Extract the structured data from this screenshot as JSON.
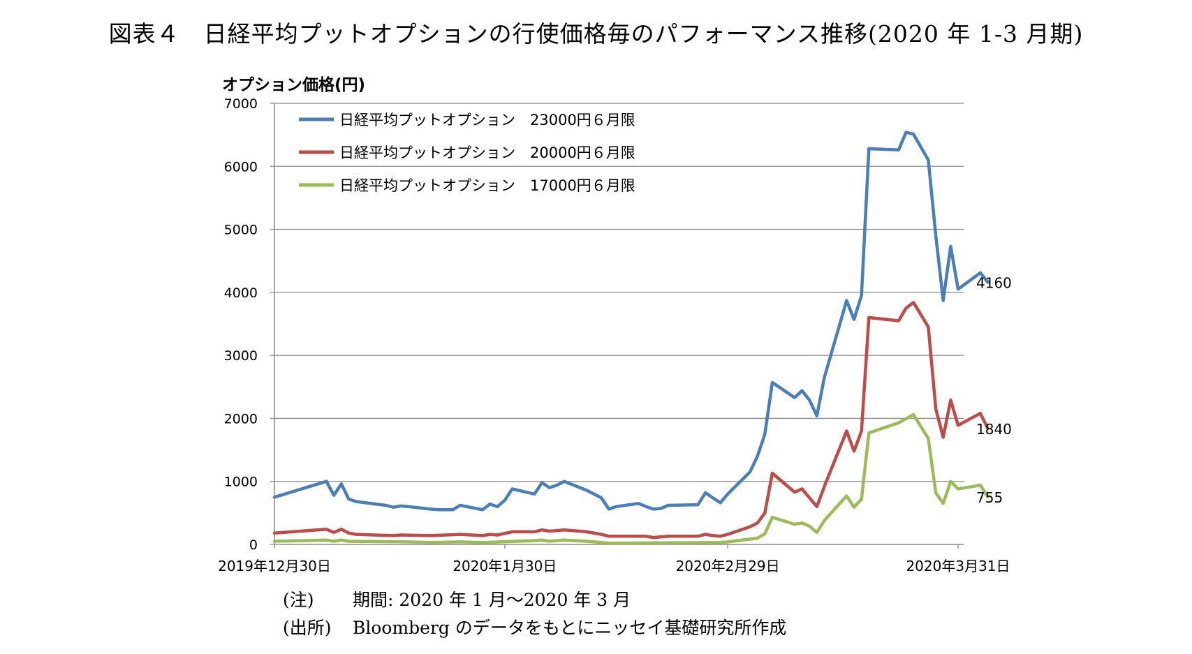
{
  "title": "図表４　日経平均プットオプションの行使価格毎のパフォーマンス推移(2020 年 1-3 月期)",
  "notes": [
    {
      "tag": "(注)",
      "text": "期間: 2020 年 1 月～2020 年 3 月"
    },
    {
      "tag": "(出所)",
      "text": "Bloomberg のデータをもとにニッセイ基礎研究所作成"
    }
  ],
  "chart_data": {
    "type": "line",
    "title": "",
    "xlabel": "",
    "ylabel": "オプション価格(円)",
    "ylim": [
      0,
      7000
    ],
    "yticks": [
      0,
      1000,
      2000,
      3000,
      4000,
      5000,
      6000,
      7000
    ],
    "xlim": [
      "2019-12-30",
      "2020-03-31"
    ],
    "xticks": [
      {
        "date": "2019-12-30",
        "label": "2019年12月30日"
      },
      {
        "date": "2020-01-30",
        "label": "2020年1月30日"
      },
      {
        "date": "2020-02-29",
        "label": "2020年2月29日"
      },
      {
        "date": "2020-03-31",
        "label": "2020年3月31日"
      }
    ],
    "grid": true,
    "legend_position": "top-left",
    "series": [
      {
        "name": "日経平均プットオプション　23000円６月限",
        "color": "#4a7ebb",
        "end_label": "4160",
        "points": [
          [
            "2019-12-30",
            750
          ],
          [
            "2020-01-06",
            1000
          ],
          [
            "2020-01-07",
            780
          ],
          [
            "2020-01-08",
            960
          ],
          [
            "2020-01-09",
            720
          ],
          [
            "2020-01-10",
            680
          ],
          [
            "2020-01-14",
            620
          ],
          [
            "2020-01-15",
            590
          ],
          [
            "2020-01-16",
            610
          ],
          [
            "2020-01-17",
            600
          ],
          [
            "2020-01-20",
            560
          ],
          [
            "2020-01-21",
            550
          ],
          [
            "2020-01-22",
            550
          ],
          [
            "2020-01-23",
            550
          ],
          [
            "2020-01-24",
            620
          ],
          [
            "2020-01-27",
            550
          ],
          [
            "2020-01-28",
            640
          ],
          [
            "2020-01-29",
            600
          ],
          [
            "2020-01-30",
            700
          ],
          [
            "2020-01-31",
            880
          ],
          [
            "2020-02-03",
            800
          ],
          [
            "2020-02-04",
            980
          ],
          [
            "2020-02-05",
            900
          ],
          [
            "2020-02-06",
            940
          ],
          [
            "2020-02-07",
            1000
          ],
          [
            "2020-02-10",
            860
          ],
          [
            "2020-02-12",
            740
          ],
          [
            "2020-02-13",
            560
          ],
          [
            "2020-02-14",
            600
          ],
          [
            "2020-02-17",
            650
          ],
          [
            "2020-02-18",
            600
          ],
          [
            "2020-02-19",
            560
          ],
          [
            "2020-02-20",
            570
          ],
          [
            "2020-02-21",
            620
          ],
          [
            "2020-02-25",
            630
          ],
          [
            "2020-02-26",
            820
          ],
          [
            "2020-02-27",
            740
          ],
          [
            "2020-02-28",
            660
          ],
          [
            "2020-02-29",
            800
          ],
          [
            "2020-03-03",
            1150
          ],
          [
            "2020-03-04",
            1400
          ],
          [
            "2020-03-05",
            1750
          ],
          [
            "2020-03-06",
            2570
          ],
          [
            "2020-03-09",
            2330
          ],
          [
            "2020-03-10",
            2440
          ],
          [
            "2020-03-11",
            2290
          ],
          [
            "2020-03-12",
            2040
          ],
          [
            "2020-03-13",
            2650
          ],
          [
            "2020-03-16",
            3870
          ],
          [
            "2020-03-17",
            3570
          ],
          [
            "2020-03-18",
            3950
          ],
          [
            "2020-03-19",
            6280
          ],
          [
            "2020-03-23",
            6260
          ],
          [
            "2020-03-24",
            6540
          ],
          [
            "2020-03-25",
            6510
          ],
          [
            "2020-03-27",
            6100
          ],
          [
            "2020-03-28",
            4900
          ],
          [
            "2020-03-29",
            3870
          ],
          [
            "2020-03-30",
            4730
          ],
          [
            "2020-03-31",
            4050
          ],
          [
            "2020-04-03",
            4310
          ],
          [
            "2020-04-04",
            4160
          ]
        ]
      },
      {
        "name": "日経平均プットオプション　20000円６月限",
        "color": "#be4b48",
        "end_label": "1840",
        "points": [
          [
            "2019-12-30",
            180
          ],
          [
            "2020-01-06",
            240
          ],
          [
            "2020-01-07",
            190
          ],
          [
            "2020-01-08",
            240
          ],
          [
            "2020-01-09",
            180
          ],
          [
            "2020-01-10",
            160
          ],
          [
            "2020-01-15",
            140
          ],
          [
            "2020-01-16",
            150
          ],
          [
            "2020-01-20",
            140
          ],
          [
            "2020-01-24",
            160
          ],
          [
            "2020-01-27",
            140
          ],
          [
            "2020-01-28",
            160
          ],
          [
            "2020-01-29",
            150
          ],
          [
            "2020-01-31",
            200
          ],
          [
            "2020-02-03",
            200
          ],
          [
            "2020-02-04",
            230
          ],
          [
            "2020-02-05",
            210
          ],
          [
            "2020-02-07",
            230
          ],
          [
            "2020-02-10",
            200
          ],
          [
            "2020-02-12",
            160
          ],
          [
            "2020-02-13",
            130
          ],
          [
            "2020-02-18",
            130
          ],
          [
            "2020-02-19",
            110
          ],
          [
            "2020-02-21",
            130
          ],
          [
            "2020-02-25",
            130
          ],
          [
            "2020-02-26",
            160
          ],
          [
            "2020-02-27",
            140
          ],
          [
            "2020-02-28",
            130
          ],
          [
            "2020-02-29",
            160
          ],
          [
            "2020-03-03",
            280
          ],
          [
            "2020-03-04",
            340
          ],
          [
            "2020-03-05",
            500
          ],
          [
            "2020-03-06",
            1130
          ],
          [
            "2020-03-09",
            830
          ],
          [
            "2020-03-10",
            880
          ],
          [
            "2020-03-11",
            740
          ],
          [
            "2020-03-12",
            600
          ],
          [
            "2020-03-13",
            920
          ],
          [
            "2020-03-16",
            1800
          ],
          [
            "2020-03-17",
            1480
          ],
          [
            "2020-03-18",
            1800
          ],
          [
            "2020-03-19",
            3600
          ],
          [
            "2020-03-23",
            3550
          ],
          [
            "2020-03-24",
            3750
          ],
          [
            "2020-03-25",
            3840
          ],
          [
            "2020-03-27",
            3450
          ],
          [
            "2020-03-28",
            2150
          ],
          [
            "2020-03-29",
            1700
          ],
          [
            "2020-03-30",
            2290
          ],
          [
            "2020-03-31",
            1890
          ],
          [
            "2020-04-03",
            2080
          ],
          [
            "2020-04-04",
            1840
          ]
        ]
      },
      {
        "name": "日経平均プットオプション　17000円６月限",
        "color": "#9bbb59",
        "end_label": "755",
        "points": [
          [
            "2019-12-30",
            50
          ],
          [
            "2020-01-06",
            70
          ],
          [
            "2020-01-07",
            50
          ],
          [
            "2020-01-08",
            70
          ],
          [
            "2020-01-09",
            50
          ],
          [
            "2020-01-17",
            40
          ],
          [
            "2020-01-20",
            30
          ],
          [
            "2020-01-24",
            40
          ],
          [
            "2020-01-27",
            30
          ],
          [
            "2020-02-03",
            60
          ],
          [
            "2020-02-04",
            70
          ],
          [
            "2020-02-05",
            50
          ],
          [
            "2020-02-07",
            70
          ],
          [
            "2020-02-10",
            50
          ],
          [
            "2020-02-12",
            30
          ],
          [
            "2020-02-13",
            20
          ],
          [
            "2020-02-28",
            30
          ],
          [
            "2020-02-29",
            40
          ],
          [
            "2020-03-04",
            100
          ],
          [
            "2020-03-05",
            170
          ],
          [
            "2020-03-06",
            430
          ],
          [
            "2020-03-09",
            320
          ],
          [
            "2020-03-10",
            340
          ],
          [
            "2020-03-11",
            290
          ],
          [
            "2020-03-12",
            190
          ],
          [
            "2020-03-13",
            380
          ],
          [
            "2020-03-16",
            770
          ],
          [
            "2020-03-17",
            590
          ],
          [
            "2020-03-18",
            720
          ],
          [
            "2020-03-19",
            1770
          ],
          [
            "2020-03-23",
            1930
          ],
          [
            "2020-03-25",
            2060
          ],
          [
            "2020-03-27",
            1680
          ],
          [
            "2020-03-28",
            820
          ],
          [
            "2020-03-29",
            650
          ],
          [
            "2020-03-30",
            1000
          ],
          [
            "2020-03-31",
            880
          ],
          [
            "2020-04-03",
            940
          ],
          [
            "2020-04-04",
            755
          ]
        ]
      }
    ]
  }
}
